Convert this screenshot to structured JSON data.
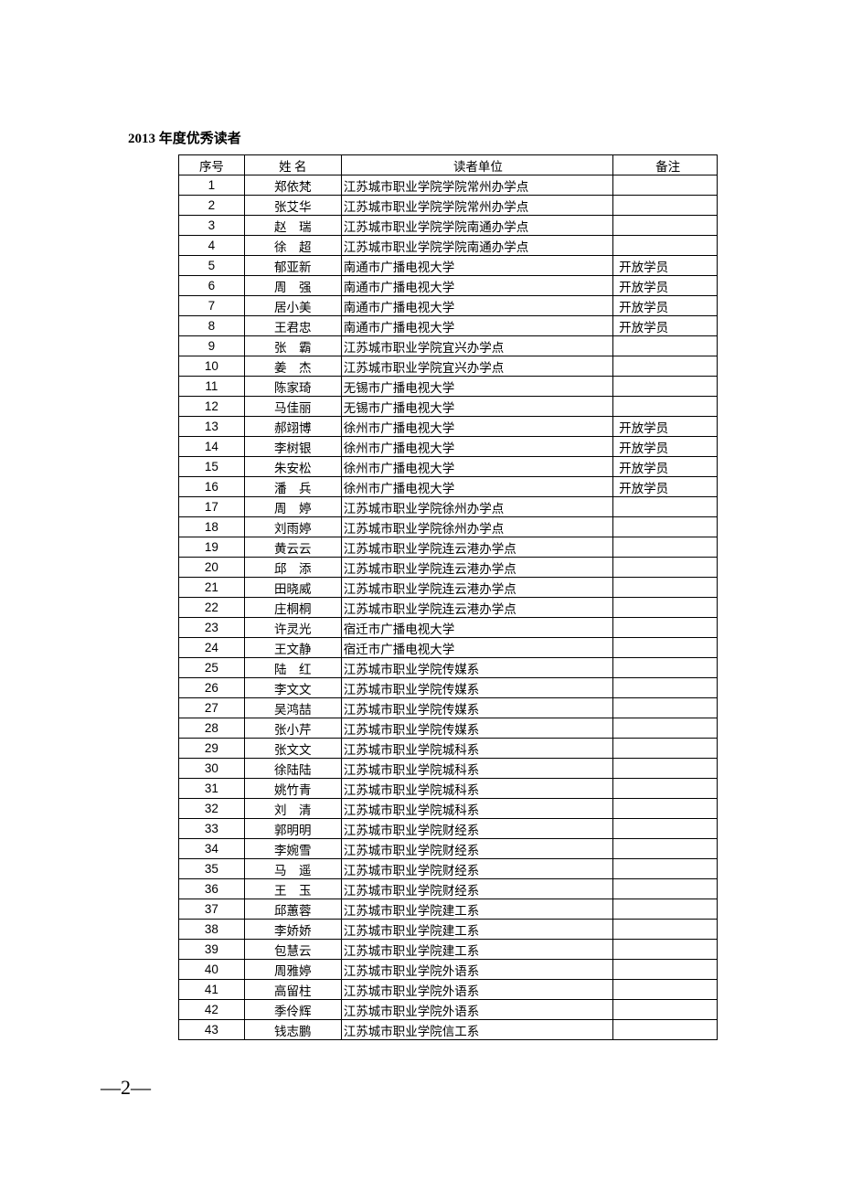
{
  "title": "2013 年度优秀读者",
  "pageNumber": "—2—",
  "table": {
    "headers": {
      "index": "序号",
      "name": "姓 名",
      "unit": "读者单位",
      "note": "备注"
    },
    "rows": [
      {
        "index": "1",
        "name": "郑依梵",
        "unit": "江苏城市职业学院学院常州办学点",
        "note": ""
      },
      {
        "index": "2",
        "name": "张艾华",
        "unit": "江苏城市职业学院学院常州办学点",
        "note": ""
      },
      {
        "index": "3",
        "name": "赵　瑞",
        "unit": "江苏城市职业学院学院南通办学点",
        "note": ""
      },
      {
        "index": "4",
        "name": "徐　超",
        "unit": "江苏城市职业学院学院南通办学点",
        "note": ""
      },
      {
        "index": "5",
        "name": "郁亚新",
        "unit": "南通市广播电视大学",
        "note": "开放学员"
      },
      {
        "index": "6",
        "name": "周　强",
        "unit": "南通市广播电视大学",
        "note": "开放学员"
      },
      {
        "index": "7",
        "name": "居小美",
        "unit": "南通市广播电视大学",
        "note": "开放学员"
      },
      {
        "index": "8",
        "name": "王君忠",
        "unit": "南通市广播电视大学",
        "note": "开放学员"
      },
      {
        "index": "9",
        "name": "张　霸",
        "unit": "江苏城市职业学院宜兴办学点",
        "note": ""
      },
      {
        "index": "10",
        "name": "姜　杰",
        "unit": "江苏城市职业学院宜兴办学点",
        "note": ""
      },
      {
        "index": "11",
        "name": "陈家琦",
        "unit": "无锡市广播电视大学",
        "note": ""
      },
      {
        "index": "12",
        "name": "马佳丽",
        "unit": "无锡市广播电视大学",
        "note": ""
      },
      {
        "index": "13",
        "name": "郝翊博",
        "unit": "徐州市广播电视大学",
        "note": "开放学员"
      },
      {
        "index": "14",
        "name": "李树银",
        "unit": "徐州市广播电视大学",
        "note": "开放学员"
      },
      {
        "index": "15",
        "name": "朱安松",
        "unit": "徐州市广播电视大学",
        "note": "开放学员"
      },
      {
        "index": "16",
        "name": "潘　兵",
        "unit": "徐州市广播电视大学",
        "note": "开放学员"
      },
      {
        "index": "17",
        "name": "周　婷",
        "unit": "江苏城市职业学院徐州办学点",
        "note": ""
      },
      {
        "index": "18",
        "name": "刘雨婷",
        "unit": "江苏城市职业学院徐州办学点",
        "note": ""
      },
      {
        "index": "19",
        "name": "黄云云",
        "unit": "江苏城市职业学院连云港办学点",
        "note": ""
      },
      {
        "index": "20",
        "name": "邱　添",
        "unit": "江苏城市职业学院连云港办学点",
        "note": ""
      },
      {
        "index": "21",
        "name": "田晓威",
        "unit": "江苏城市职业学院连云港办学点",
        "note": ""
      },
      {
        "index": "22",
        "name": "庄桐桐",
        "unit": "江苏城市职业学院连云港办学点",
        "note": ""
      },
      {
        "index": "23",
        "name": "许灵光",
        "unit": "宿迁市广播电视大学",
        "note": ""
      },
      {
        "index": "24",
        "name": "王文静",
        "unit": "宿迁市广播电视大学",
        "note": ""
      },
      {
        "index": "25",
        "name": "陆　红",
        "unit": "江苏城市职业学院传媒系",
        "note": ""
      },
      {
        "index": "26",
        "name": "李文文",
        "unit": "江苏城市职业学院传媒系",
        "note": ""
      },
      {
        "index": "27",
        "name": "吴鸿喆",
        "unit": "江苏城市职业学院传媒系",
        "note": ""
      },
      {
        "index": "28",
        "name": "张小芹",
        "unit": "江苏城市职业学院传媒系",
        "note": ""
      },
      {
        "index": "29",
        "name": "张文文",
        "unit": "江苏城市职业学院城科系",
        "note": ""
      },
      {
        "index": "30",
        "name": "徐陆陆",
        "unit": "江苏城市职业学院城科系",
        "note": ""
      },
      {
        "index": "31",
        "name": "姚竹青",
        "unit": "江苏城市职业学院城科系",
        "note": ""
      },
      {
        "index": "32",
        "name": "刘　清",
        "unit": "江苏城市职业学院城科系",
        "note": ""
      },
      {
        "index": "33",
        "name": "郭明明",
        "unit": "江苏城市职业学院财经系",
        "note": ""
      },
      {
        "index": "34",
        "name": "李婉雪",
        "unit": "江苏城市职业学院财经系",
        "note": ""
      },
      {
        "index": "35",
        "name": "马　遥",
        "unit": "江苏城市职业学院财经系",
        "note": ""
      },
      {
        "index": "36",
        "name": "王　玉",
        "unit": "江苏城市职业学院财经系",
        "note": ""
      },
      {
        "index": "37",
        "name": "邱蕙蓉",
        "unit": "江苏城市职业学院建工系",
        "note": ""
      },
      {
        "index": "38",
        "name": "李娇娇",
        "unit": "江苏城市职业学院建工系",
        "note": ""
      },
      {
        "index": "39",
        "name": "包慧云",
        "unit": "江苏城市职业学院建工系",
        "note": ""
      },
      {
        "index": "40",
        "name": "周雅婷",
        "unit": "江苏城市职业学院外语系",
        "note": ""
      },
      {
        "index": "41",
        "name": "高留柱",
        "unit": "江苏城市职业学院外语系",
        "note": ""
      },
      {
        "index": "42",
        "name": "季伶辉",
        "unit": "江苏城市职业学院外语系",
        "note": ""
      },
      {
        "index": "43",
        "name": "钱志鹏",
        "unit": "江苏城市职业学院信工系",
        "note": ""
      }
    ]
  }
}
